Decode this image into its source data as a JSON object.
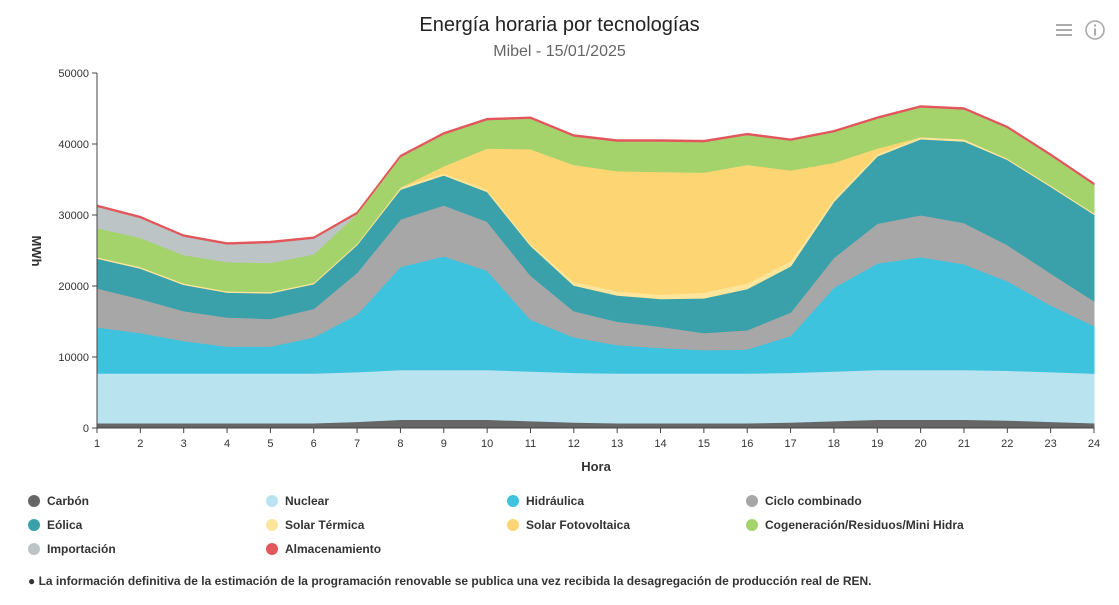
{
  "header": {
    "title": "Energía horaria por tecnologías",
    "subtitle": "Mibel - 15/01/2025"
  },
  "toolbar": {
    "menu_icon": "hamburger-menu-icon",
    "info_icon": "info-circle-icon"
  },
  "footnote": "● La información definitiva de la estimación de la programación renovable se publica una vez recibida la desagregación de producción real de REN.",
  "chart_data": {
    "type": "area",
    "stacked": true,
    "title": "Energía horaria por tecnologías",
    "subtitle": "Mibel - 15/01/2025",
    "xlabel": "Hora",
    "ylabel": "MWh",
    "x": [
      1,
      2,
      3,
      4,
      5,
      6,
      7,
      8,
      9,
      10,
      11,
      12,
      13,
      14,
      15,
      16,
      17,
      18,
      19,
      20,
      21,
      22,
      23,
      24
    ],
    "ylim": [
      0,
      50000
    ],
    "yticks": [
      0,
      10000,
      20000,
      30000,
      40000,
      50000
    ],
    "grid": false,
    "legend_position": "bottom",
    "series": [
      {
        "name": "Carbón",
        "color": "#666666",
        "values": [
          700,
          700,
          700,
          700,
          700,
          700,
          900,
          1200,
          1200,
          1200,
          1000,
          800,
          700,
          700,
          700,
          700,
          800,
          1000,
          1200,
          1200,
          1200,
          1100,
          900,
          700
        ]
      },
      {
        "name": "Nuclear",
        "color": "#b9e3ee",
        "values": [
          7000,
          7000,
          7000,
          7000,
          7000,
          7000,
          7000,
          7000,
          7000,
          7000,
          7000,
          7000,
          7000,
          7000,
          7000,
          7000,
          7000,
          7000,
          7000,
          7000,
          7000,
          7000,
          7000,
          7000
        ]
      },
      {
        "name": "Hidráulica",
        "color": "#3ec3de",
        "values": [
          6500,
          5700,
          4600,
          3800,
          3800,
          5100,
          8100,
          14500,
          16000,
          14000,
          7300,
          5000,
          4000,
          3600,
          3300,
          3400,
          5200,
          11800,
          15000,
          15900,
          14900,
          12600,
          9400,
          6700
        ]
      },
      {
        "name": "Ciclo combinado",
        "color": "#a7a7a7",
        "values": [
          5500,
          4800,
          4200,
          4100,
          3900,
          4000,
          5900,
          6700,
          7200,
          6900,
          6200,
          3700,
          3300,
          3000,
          2400,
          2700,
          3300,
          4200,
          5600,
          5900,
          5800,
          5100,
          4500,
          3500
        ]
      },
      {
        "name": "Eólica",
        "color": "#3aa1ab",
        "values": [
          4200,
          4300,
          3700,
          3500,
          3600,
          3500,
          3900,
          4200,
          4200,
          4200,
          4200,
          3600,
          3700,
          3900,
          4900,
          5800,
          6500,
          7900,
          9500,
          10700,
          11500,
          12000,
          12200,
          12200
        ]
      },
      {
        "name": "Solar Térmica",
        "color": "#fde59b",
        "values": [
          200,
          200,
          200,
          200,
          200,
          200,
          200,
          300,
          300,
          300,
          300,
          500,
          600,
          600,
          800,
          800,
          700,
          400,
          300,
          300,
          300,
          200,
          200,
          200
        ]
      },
      {
        "name": "Solar Fotovoltaica",
        "color": "#fed573",
        "values": [
          0,
          0,
          0,
          0,
          0,
          0,
          0,
          0,
          1000,
          5800,
          13300,
          16500,
          16900,
          17300,
          16900,
          16700,
          12800,
          5100,
          800,
          0,
          0,
          0,
          0,
          0
        ]
      },
      {
        "name": "Cogeneración/Residuos/Mini Hidra",
        "color": "#a4d36c",
        "values": [
          4100,
          4100,
          4000,
          4100,
          4100,
          4000,
          4200,
          4300,
          4500,
          4000,
          4300,
          4000,
          4200,
          4300,
          4300,
          4200,
          4200,
          4300,
          4200,
          4200,
          4200,
          4300,
          4200,
          4000
        ]
      },
      {
        "name": "Importación",
        "color": "#bcc4c6",
        "values": [
          3000,
          2800,
          2600,
          2500,
          2800,
          2200,
          0,
          0,
          0,
          0,
          0,
          0,
          0,
          0,
          0,
          0,
          0,
          0,
          0,
          0,
          0,
          0,
          0,
          0
        ]
      },
      {
        "name": "Almacenamiento",
        "color": "#e2575b",
        "values": [
          200,
          200,
          200,
          200,
          200,
          200,
          200,
          200,
          200,
          200,
          200,
          200,
          200,
          200,
          200,
          200,
          200,
          200,
          200,
          200,
          200,
          200,
          200,
          200
        ]
      }
    ]
  }
}
